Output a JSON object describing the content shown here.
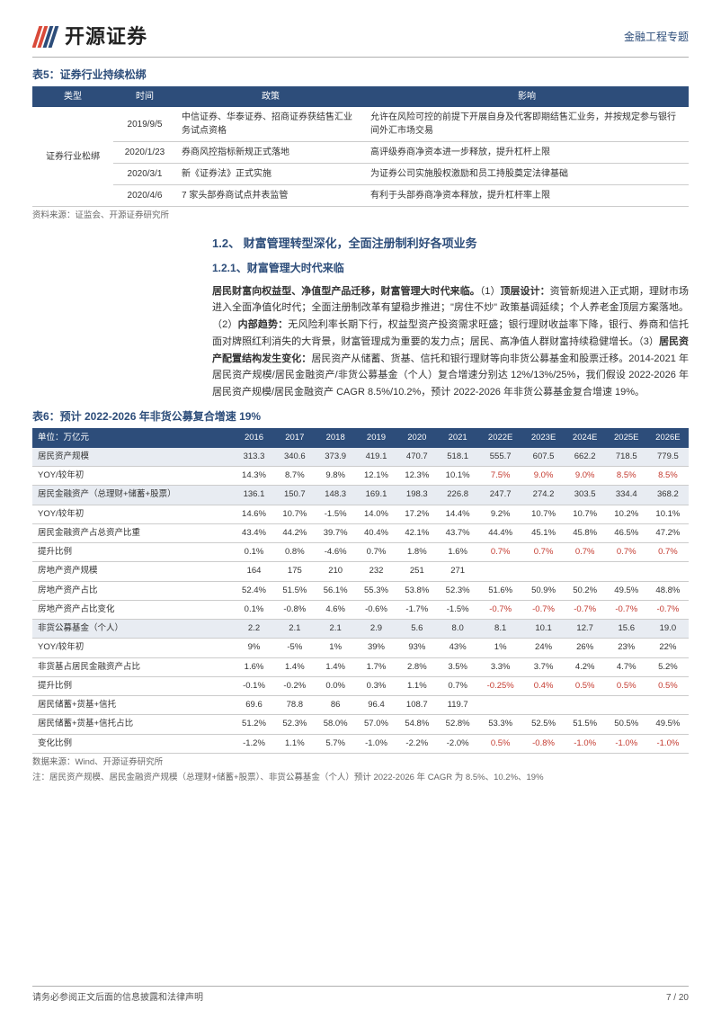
{
  "header": {
    "logo_text": "开源证券",
    "doc_type": "金融工程专题",
    "logo_color_1": "#d94a3a",
    "logo_color_2": "#2d4d7a"
  },
  "table5": {
    "caption": "表5：证券行业持续松绑",
    "columns": [
      "类型",
      "时间",
      "政策",
      "影响"
    ],
    "category_label": "证券行业松绑",
    "rows": [
      {
        "date": "2019/9/5",
        "policy": "中信证券、华泰证券、招商证券获结售汇业务试点资格",
        "impact": "允许在风险可控的前提下开展自身及代客即期结售汇业务，并按规定参与银行间外汇市场交易"
      },
      {
        "date": "2020/1/23",
        "policy": "券商风控指标新规正式落地",
        "impact": "高评级券商净资本进一步释放，提升杠杆上限"
      },
      {
        "date": "2020/3/1",
        "policy": "新《证券法》正式实施",
        "impact": "为证券公司实施股权激励和员工持股奠定法律基础"
      },
      {
        "date": "2020/4/6",
        "policy": "7 家头部券商试点并表监管",
        "impact": "有利于头部券商净资本释放，提升杠杆率上限"
      }
    ],
    "source": "资料来源：证监会、开源证券研究所"
  },
  "section": {
    "title": "1.2、 财富管理转型深化，全面注册制利好各项业务",
    "subtitle": "1.2.1、财富管理大时代来临",
    "para": "居民财富向权益型、净值型产品迁移，财富管理大时代来临。（1）顶层设计：资管新规进入正式期，理财市场进入全面净值化时代；全面注册制改革有望稳步推进；\"房住不炒\" 政策基调延续；个人养老金顶层方案落地。（2）内部趋势：无风险利率长期下行，权益型资产投资需求旺盛；银行理财收益率下降，银行、券商和信托面对牌照红利消失的大背景，财富管理成为重要的发力点；居民、高净值人群财富持续稳健增长。（3）居民资产配置结构发生变化：居民资产从储蓄、货基、信托和银行理财等向非货公募基金和股票迁移。2014-2021 年居民资产规模/居民金融资产/非货公募基金（个人）复合增速分别达 12%/13%/25%，我们假设 2022-2026 年居民资产规模/居民金融资产 CAGR 8.5%/10.2%，预计 2022-2026 年非货公募基金复合增速 19%。",
    "bold_spans": [
      "居民财富向权益型、净值型产品迁移，财富管理大时代来临。",
      "顶层设计：",
      "内部趋势：",
      "居民资产配置结构发生变化："
    ]
  },
  "table6": {
    "caption": "表6：预计 2022-2026 年非货公募复合增速 19%",
    "unit_label": "单位：万亿元",
    "years": [
      "2016",
      "2017",
      "2018",
      "2019",
      "2020",
      "2021",
      "2022E",
      "2023E",
      "2024E",
      "2025E",
      "2026E"
    ],
    "rows": [
      {
        "label": "居民资产规模",
        "shade": true,
        "vals": [
          "313.3",
          "340.6",
          "373.9",
          "419.1",
          "470.7",
          "518.1",
          "555.7",
          "607.5",
          "662.2",
          "718.5",
          "779.5"
        ],
        "red_from": null
      },
      {
        "label": "YOY/较年初",
        "shade": false,
        "vals": [
          "14.3%",
          "8.7%",
          "9.8%",
          "12.1%",
          "12.3%",
          "10.1%",
          "7.5%",
          "9.0%",
          "9.0%",
          "8.5%",
          "8.5%"
        ],
        "red_from": 6
      },
      {
        "label": "居民金融资产（总理财+储蓄+股票）",
        "shade": true,
        "vals": [
          "136.1",
          "150.7",
          "148.3",
          "169.1",
          "198.3",
          "226.8",
          "247.7",
          "274.2",
          "303.5",
          "334.4",
          "368.2"
        ],
        "red_from": null
      },
      {
        "label": "YOY/较年初",
        "shade": false,
        "vals": [
          "14.6%",
          "10.7%",
          "-1.5%",
          "14.0%",
          "17.2%",
          "14.4%",
          "9.2%",
          "10.7%",
          "10.7%",
          "10.2%",
          "10.1%"
        ],
        "red_from": null
      },
      {
        "label": "居民金融资产占总资产比重",
        "shade": false,
        "vals": [
          "43.4%",
          "44.2%",
          "39.7%",
          "40.4%",
          "42.1%",
          "43.7%",
          "44.4%",
          "45.1%",
          "45.8%",
          "46.5%",
          "47.2%"
        ],
        "red_from": null
      },
      {
        "label": "提升比例",
        "shade": false,
        "vals": [
          "0.1%",
          "0.8%",
          "-4.6%",
          "0.7%",
          "1.8%",
          "1.6%",
          "0.7%",
          "0.7%",
          "0.7%",
          "0.7%",
          "0.7%"
        ],
        "red_from": 6
      },
      {
        "label": "房地产资产规模",
        "shade": false,
        "vals": [
          "164",
          "175",
          "210",
          "232",
          "251",
          "271",
          "",
          "",
          "",
          "",
          ""
        ],
        "red_from": null
      },
      {
        "label": "房地产资产占比",
        "shade": false,
        "vals": [
          "52.4%",
          "51.5%",
          "56.1%",
          "55.3%",
          "53.8%",
          "52.3%",
          "51.6%",
          "50.9%",
          "50.2%",
          "49.5%",
          "48.8%"
        ],
        "red_from": null
      },
      {
        "label": "房地产资产占比变化",
        "shade": false,
        "vals": [
          "0.1%",
          "-0.8%",
          "4.6%",
          "-0.6%",
          "-1.7%",
          "-1.5%",
          "-0.7%",
          "-0.7%",
          "-0.7%",
          "-0.7%",
          "-0.7%"
        ],
        "red_from": 6
      },
      {
        "label": "非货公募基金（个人）",
        "shade": true,
        "vals": [
          "2.2",
          "2.1",
          "2.1",
          "2.9",
          "5.6",
          "8.0",
          "8.1",
          "10.1",
          "12.7",
          "15.6",
          "19.0"
        ],
        "red_from": null
      },
      {
        "label": "YOY/较年初",
        "shade": false,
        "vals": [
          "9%",
          "-5%",
          "1%",
          "39%",
          "93%",
          "43%",
          "1%",
          "24%",
          "26%",
          "23%",
          "22%"
        ],
        "red_from": null
      },
      {
        "label": "非货基占居民金融资产占比",
        "shade": false,
        "vals": [
          "1.6%",
          "1.4%",
          "1.4%",
          "1.7%",
          "2.8%",
          "3.5%",
          "3.3%",
          "3.7%",
          "4.2%",
          "4.7%",
          "5.2%"
        ],
        "red_from": null
      },
      {
        "label": "提升比例",
        "shade": false,
        "vals": [
          "-0.1%",
          "-0.2%",
          "0.0%",
          "0.3%",
          "1.1%",
          "0.7%",
          "-0.25%",
          "0.4%",
          "0.5%",
          "0.5%",
          "0.5%"
        ],
        "red_from": 6
      },
      {
        "label": "居民储蓄+货基+信托",
        "shade": false,
        "vals": [
          "69.6",
          "78.8",
          "86",
          "96.4",
          "108.7",
          "119.7",
          "",
          "",
          "",
          "",
          ""
        ],
        "red_from": null
      },
      {
        "label": "居民储蓄+货基+信托占比",
        "shade": false,
        "vals": [
          "51.2%",
          "52.3%",
          "58.0%",
          "57.0%",
          "54.8%",
          "52.8%",
          "53.3%",
          "52.5%",
          "51.5%",
          "50.5%",
          "49.5%"
        ],
        "red_from": null
      },
      {
        "label": "变化比例",
        "shade": false,
        "vals": [
          "-1.2%",
          "1.1%",
          "5.7%",
          "-1.0%",
          "-2.2%",
          "-2.0%",
          "0.5%",
          "-0.8%",
          "-1.0%",
          "-1.0%",
          "-1.0%"
        ],
        "red_from": 6
      }
    ],
    "source": "数据来源：Wind、开源证券研究所",
    "note": "注：居民资产规模、居民金融资产规模（总理财+储蓄+股票）、非货公募基金（个人）预计 2022-2026 年 CAGR 为 8.5%、10.2%、19%",
    "header_bg": "#2d4d7a",
    "shade_bg": "#e8ecf2",
    "red_color": "#c43a2f"
  },
  "footer": {
    "disclaimer": "请务必参阅正文后面的信息披露和法律声明",
    "page": "7 / 20"
  }
}
